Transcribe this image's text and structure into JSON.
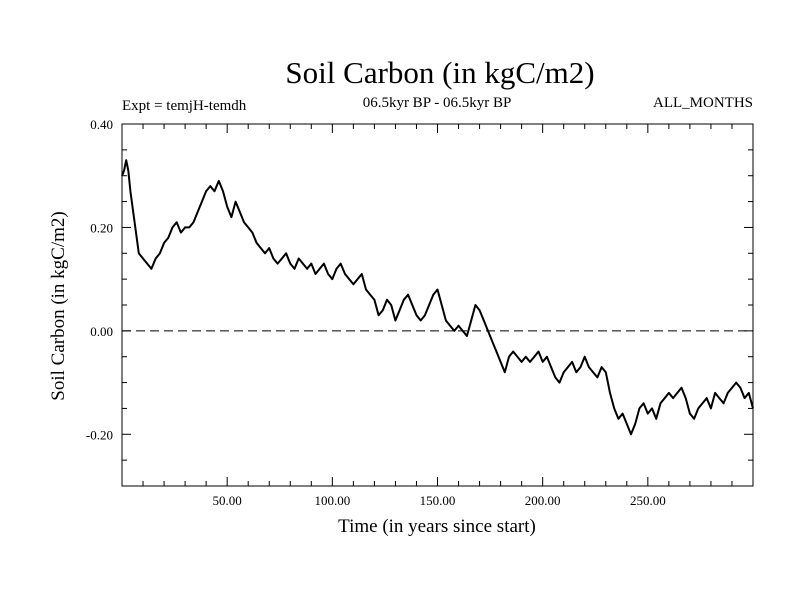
{
  "chart_data": {
    "type": "line",
    "title": "Soil Carbon (in kgC/m2)",
    "subtitle_left": "Expt = temjH-temdh",
    "subtitle_center": "06.5kyr BP - 06.5kyr BP",
    "subtitle_right": "ALL_MONTHS",
    "xlabel": "Time (in years since start)",
    "ylabel": "Soil Carbon (in kgC/m2)",
    "xlim": [
      0,
      300
    ],
    "ylim": [
      -0.3,
      0.4
    ],
    "xticks": [
      50,
      100,
      150,
      200,
      250
    ],
    "xtick_labels": [
      "50.00",
      "100.00",
      "150.00",
      "200.00",
      "250.00"
    ],
    "yticks": [
      0.4,
      0.2,
      0.0,
      -0.2
    ],
    "ytick_labels": [
      "0.40",
      "0.20",
      "0.00",
      "-0.20"
    ],
    "reference_line": {
      "y": 0.0,
      "style": "dashed"
    },
    "series": [
      {
        "name": "Soil Carbon",
        "x": [
          0,
          1,
          2,
          3,
          4,
          6,
          8,
          10,
          12,
          14,
          16,
          18,
          20,
          22,
          24,
          26,
          28,
          30,
          32,
          34,
          36,
          38,
          40,
          42,
          44,
          46,
          48,
          50,
          52,
          54,
          56,
          58,
          60,
          62,
          64,
          66,
          68,
          70,
          72,
          74,
          76,
          78,
          80,
          82,
          84,
          86,
          88,
          90,
          92,
          94,
          96,
          98,
          100,
          102,
          104,
          106,
          108,
          110,
          112,
          114,
          116,
          118,
          120,
          122,
          124,
          126,
          128,
          130,
          132,
          134,
          136,
          138,
          140,
          142,
          144,
          146,
          148,
          150,
          152,
          154,
          156,
          158,
          160,
          162,
          164,
          166,
          168,
          170,
          172,
          174,
          176,
          178,
          180,
          182,
          184,
          186,
          188,
          190,
          192,
          194,
          196,
          198,
          200,
          202,
          204,
          206,
          208,
          210,
          212,
          214,
          216,
          218,
          220,
          222,
          224,
          226,
          228,
          230,
          232,
          234,
          236,
          238,
          240,
          242,
          244,
          246,
          248,
          250,
          252,
          254,
          256,
          258,
          260,
          262,
          264,
          266,
          268,
          270,
          272,
          274,
          276,
          278,
          280,
          282,
          284,
          286,
          288,
          290,
          292,
          294,
          296,
          298,
          300
        ],
        "y": [
          0.3,
          0.31,
          0.33,
          0.31,
          0.27,
          0.21,
          0.15,
          0.14,
          0.13,
          0.12,
          0.14,
          0.15,
          0.17,
          0.18,
          0.2,
          0.21,
          0.19,
          0.2,
          0.2,
          0.21,
          0.23,
          0.25,
          0.27,
          0.28,
          0.27,
          0.29,
          0.27,
          0.24,
          0.22,
          0.25,
          0.23,
          0.21,
          0.2,
          0.19,
          0.17,
          0.16,
          0.15,
          0.16,
          0.14,
          0.13,
          0.14,
          0.15,
          0.13,
          0.12,
          0.14,
          0.13,
          0.12,
          0.13,
          0.11,
          0.12,
          0.13,
          0.11,
          0.1,
          0.12,
          0.13,
          0.11,
          0.1,
          0.09,
          0.1,
          0.11,
          0.08,
          0.07,
          0.06,
          0.03,
          0.04,
          0.06,
          0.05,
          0.02,
          0.04,
          0.06,
          0.07,
          0.05,
          0.03,
          0.02,
          0.03,
          0.05,
          0.07,
          0.08,
          0.05,
          0.02,
          0.01,
          0.0,
          0.01,
          0.0,
          -0.01,
          0.02,
          0.05,
          0.04,
          0.02,
          0.0,
          -0.02,
          -0.04,
          -0.06,
          -0.08,
          -0.05,
          -0.04,
          -0.05,
          -0.06,
          -0.05,
          -0.06,
          -0.05,
          -0.04,
          -0.06,
          -0.05,
          -0.07,
          -0.09,
          -0.1,
          -0.08,
          -0.07,
          -0.06,
          -0.08,
          -0.07,
          -0.05,
          -0.07,
          -0.08,
          -0.09,
          -0.07,
          -0.08,
          -0.12,
          -0.15,
          -0.17,
          -0.16,
          -0.18,
          -0.2,
          -0.18,
          -0.15,
          -0.14,
          -0.16,
          -0.15,
          -0.17,
          -0.14,
          -0.13,
          -0.12,
          -0.13,
          -0.12,
          -0.11,
          -0.13,
          -0.16,
          -0.17,
          -0.15,
          -0.14,
          -0.13,
          -0.15,
          -0.12,
          -0.13,
          -0.14,
          -0.12,
          -0.11,
          -0.1,
          -0.11,
          -0.13,
          -0.12,
          -0.15
        ]
      }
    ]
  }
}
